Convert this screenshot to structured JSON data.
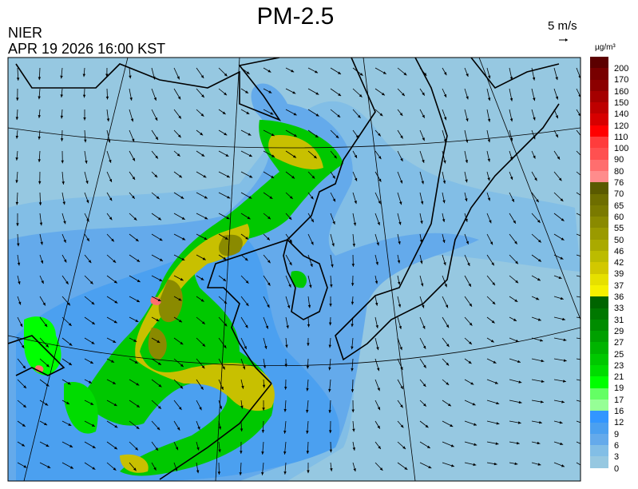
{
  "header": {
    "title": "PM-2.5",
    "organization": "NIER",
    "timestamp": "APR 19 2026 16:00 KST",
    "wind_scale_label": "5 m/s",
    "wind_scale_icon": "arrow-right-icon"
  },
  "legend": {
    "unit": "µg/m³",
    "labels": [
      "200",
      "170",
      "160",
      "150",
      "140",
      "120",
      "110",
      "100",
      "90",
      "80",
      "76",
      "70",
      "65",
      "60",
      "55",
      "50",
      "46",
      "42",
      "39",
      "37",
      "36",
      "33",
      "31",
      "29",
      "27",
      "25",
      "23",
      "21",
      "19",
      "17",
      "16",
      "12",
      "9",
      "6",
      "3",
      "0"
    ],
    "colors": [
      "#5c0000",
      "#780000",
      "#8c0000",
      "#a50000",
      "#be0000",
      "#d70000",
      "#ff0000",
      "#ff3c3c",
      "#ff5050",
      "#ff6e6e",
      "#ff8c8c",
      "#5a5a00",
      "#6e6e00",
      "#7a7a00",
      "#8a8a00",
      "#9a9a00",
      "#aaaa00",
      "#bcbc00",
      "#d2c800",
      "#e6e000",
      "#f5f000",
      "#006400",
      "#007800",
      "#008c00",
      "#00a000",
      "#00b400",
      "#00c800",
      "#00dc00",
      "#00ff00",
      "#64ff64",
      "#96ff96",
      "#3296ff",
      "#4ba0f0",
      "#64aaeb",
      "#82bee6",
      "#96c8e1"
    ]
  },
  "map": {
    "region": "Northeast Asia",
    "variable": "PM-2.5 concentration with wind vectors"
  }
}
